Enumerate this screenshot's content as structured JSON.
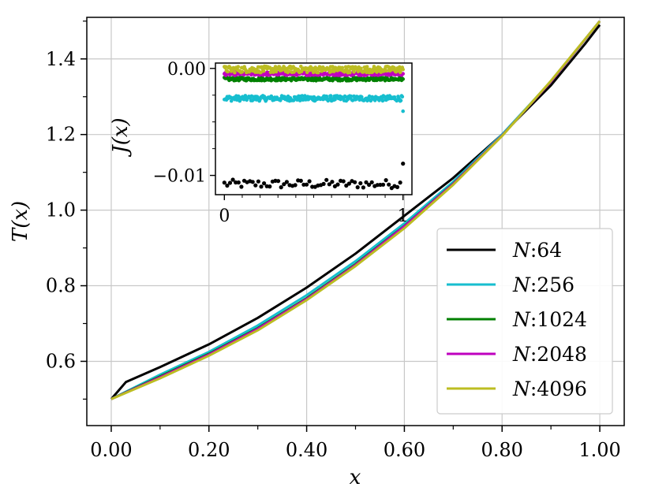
{
  "chart_data": [
    {
      "type": "line",
      "xlabel": "x",
      "ylabel": "T(x)",
      "xlim": [
        -0.05,
        1.05
      ],
      "ylim": [
        0.43,
        1.51
      ],
      "xticks": [
        0.0,
        0.2,
        0.4,
        0.6,
        0.8,
        1.0
      ],
      "xtick_labels": [
        "0.00",
        "0.20",
        "0.40",
        "0.60",
        "0.80",
        "1.00"
      ],
      "yticks": [
        0.6,
        0.8,
        1.0,
        1.2,
        1.4
      ],
      "ytick_labels": [
        "0.6",
        "0.8",
        "1.0",
        "1.2",
        "1.4"
      ],
      "grid": true,
      "legend_position": "lower-right",
      "series": [
        {
          "name": "N:64",
          "color": "#000000",
          "x": [
            0.0,
            0.03,
            0.1,
            0.2,
            0.3,
            0.4,
            0.5,
            0.6,
            0.7,
            0.8,
            0.9,
            0.97,
            1.0
          ],
          "y": [
            0.5,
            0.545,
            0.585,
            0.645,
            0.715,
            0.795,
            0.885,
            0.985,
            1.085,
            1.2,
            1.33,
            1.44,
            1.49
          ]
        },
        {
          "name": "N:256",
          "color": "#17becf",
          "x": [
            0.0,
            0.1,
            0.2,
            0.3,
            0.4,
            0.5,
            0.6,
            0.7,
            0.8,
            0.9,
            1.0
          ],
          "y": [
            0.5,
            0.565,
            0.625,
            0.695,
            0.775,
            0.865,
            0.965,
            1.075,
            1.2,
            1.34,
            1.5
          ]
        },
        {
          "name": "N:1024",
          "color": "#008000",
          "x": [
            0.0,
            0.1,
            0.2,
            0.3,
            0.4,
            0.5,
            0.6,
            0.7,
            0.8,
            0.9,
            1.0
          ],
          "y": [
            0.5,
            0.56,
            0.62,
            0.688,
            0.767,
            0.857,
            0.958,
            1.07,
            1.197,
            1.34,
            1.5
          ]
        },
        {
          "name": "N:2048",
          "color": "#bf00bf",
          "x": [
            0.0,
            0.1,
            0.2,
            0.3,
            0.4,
            0.5,
            0.6,
            0.7,
            0.8,
            0.9,
            1.0
          ],
          "y": [
            0.5,
            0.558,
            0.618,
            0.686,
            0.765,
            0.855,
            0.957,
            1.069,
            1.197,
            1.34,
            1.5
          ]
        },
        {
          "name": "N:4096",
          "color": "#bcbd22",
          "x": [
            0.0,
            0.1,
            0.2,
            0.3,
            0.4,
            0.5,
            0.6,
            0.7,
            0.8,
            0.9,
            1.0
          ],
          "y": [
            0.5,
            0.555,
            0.615,
            0.682,
            0.762,
            0.852,
            0.952,
            1.067,
            1.196,
            1.342,
            1.5
          ]
        }
      ]
    },
    {
      "type": "scatter",
      "ylabel": "J(x)",
      "xlim": [
        -0.05,
        1.05
      ],
      "ylim": [
        -0.0118,
        0.0005
      ],
      "xticks": [
        0,
        1
      ],
      "xtick_labels": [
        "0",
        "1"
      ],
      "yticks": [
        0.0,
        -0.01
      ],
      "ytick_labels": [
        "0.00",
        "−0.01"
      ],
      "grid": false,
      "series": [
        {
          "name": "N:64",
          "color": "#000000",
          "count": 64,
          "mean": -0.0108,
          "spread": 0.0004,
          "last_value": -0.0089
        },
        {
          "name": "N:256",
          "color": "#17becf",
          "count": 256,
          "mean": -0.0028,
          "spread": 0.00025,
          "last_value": -0.004
        },
        {
          "name": "N:1024",
          "color": "#008000",
          "count": 1024,
          "mean": -0.001,
          "spread": 0.00015,
          "last_value": -0.001
        },
        {
          "name": "N:2048",
          "color": "#bf00bf",
          "count": 2048,
          "mean": -0.0005,
          "spread": 0.00015,
          "last_value": -0.0005
        },
        {
          "name": "N:4096",
          "color": "#bcbd22",
          "count": 4096,
          "mean": -0.0001,
          "spread": 0.0003,
          "last_value": -0.0001
        }
      ]
    }
  ]
}
